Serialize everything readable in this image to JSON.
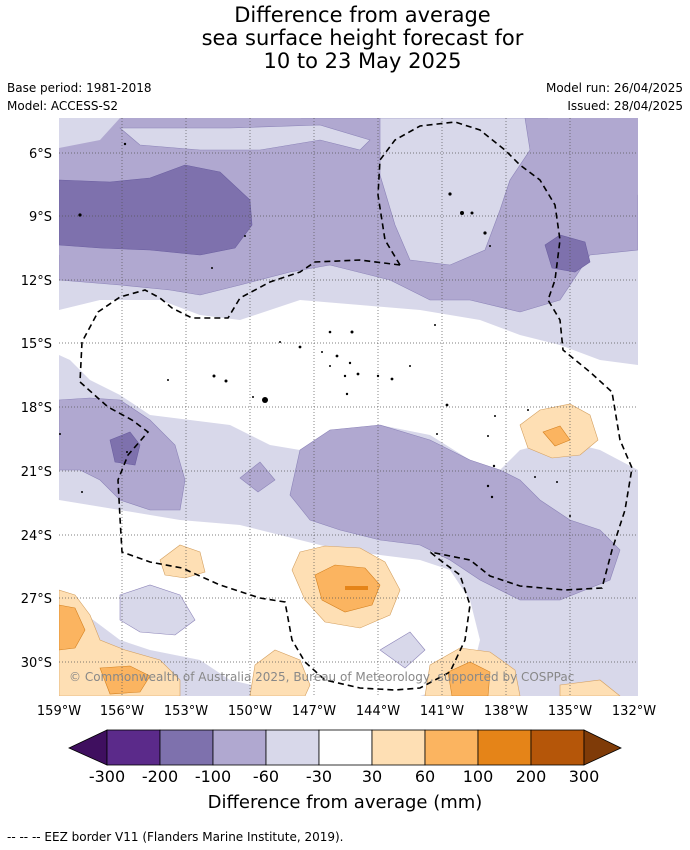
{
  "title": {
    "line1": "Difference from average",
    "line2": "sea surface height forecast for",
    "line3": "10 to 23 May 2025"
  },
  "meta": {
    "base_period": "Base period: 1981-2018",
    "model": "Model: ACCESS-S2",
    "model_run": "Model run: 26/04/2025",
    "issued": "Issued: 28/04/2025"
  },
  "map": {
    "lat_labels": [
      "6°S",
      "9°S",
      "12°S",
      "15°S",
      "18°S",
      "21°S",
      "24°S",
      "27°S",
      "30°S"
    ],
    "lon_labels": [
      "159°W",
      "156°W",
      "153°W",
      "150°W",
      "147°W",
      "144°W",
      "141°W",
      "138°W",
      "135°W",
      "132°W"
    ],
    "copyright": "© Commonwealth of Australia 2025, Bureau of Meteorology, supported by COSPPac"
  },
  "colorbar": {
    "ticks": [
      "-300",
      "-200",
      "-100",
      "-60",
      "-30",
      "30",
      "60",
      "100",
      "200",
      "300"
    ],
    "colors": [
      "#3f0f5f",
      "#5b2a8a",
      "#7e71ad",
      "#b0a8d0",
      "#d8d8ea",
      "#ffffff",
      "#fedfb4",
      "#fbb460",
      "#e58418",
      "#b55609",
      "#7f3b08"
    ],
    "label": "Difference from average (mm)"
  },
  "footnote": "--  --  -- EEZ border V11 (Flanders Marine Institute, 2019)."
}
